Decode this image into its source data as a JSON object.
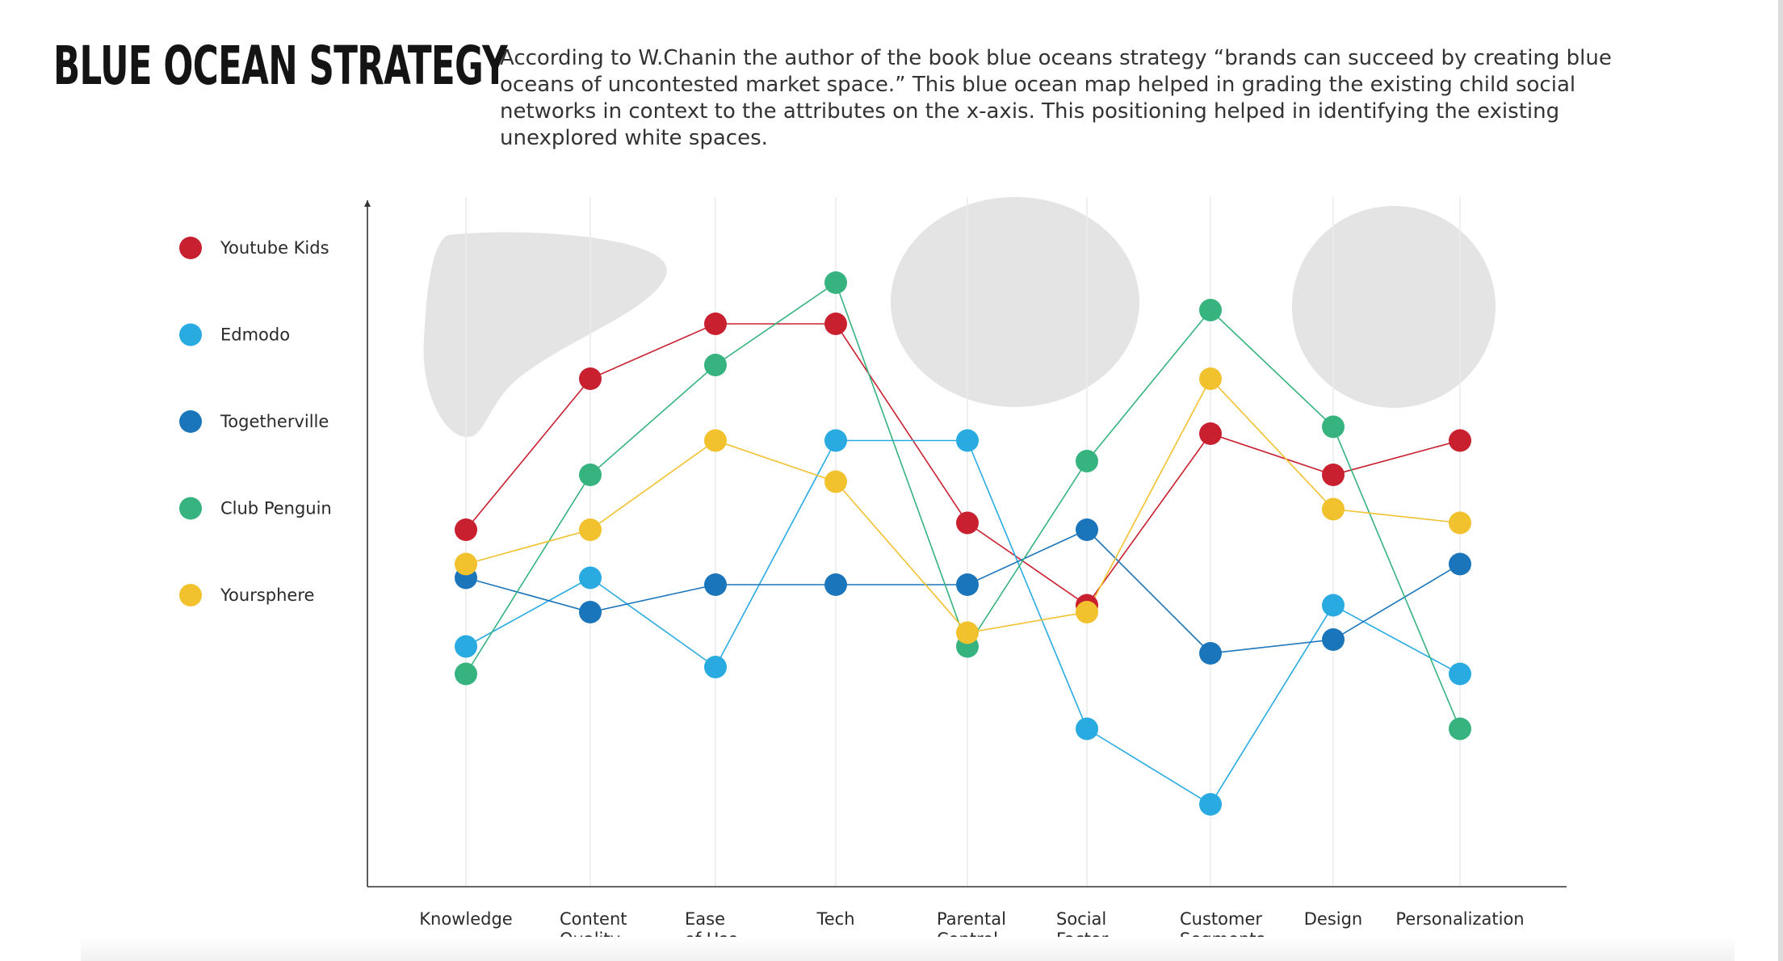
{
  "header": {
    "title": "BLUE OCEAN STRATEGY",
    "intro_lines": [
      "According to W.Chanin the author of the book blue oceans strategy “brands can succeed by creating blue",
      "oceans of uncontested market space.”  This blue ocean map helped in grading the existing child social",
      "networks in context to the attributes on the x-axis. This positioning helped in identifying the existing",
      "unexplored white spaces."
    ]
  },
  "chart_data": {
    "type": "line",
    "title": "",
    "xlabel": "",
    "ylabel": "",
    "ylim": [
      0,
      10
    ],
    "grid": "vertical",
    "legend_position": "left",
    "categories": [
      [
        "Knowledge"
      ],
      [
        "Content",
        "Quality"
      ],
      [
        "Ease",
        "of Use"
      ],
      [
        "Tech"
      ],
      [
        "Parental",
        "Control"
      ],
      [
        "Social",
        "Factor"
      ],
      [
        "Customer",
        "Segments"
      ],
      [
        "Design"
      ],
      [
        "Personalization"
      ]
    ],
    "series": [
      {
        "name": "Youtube Kids",
        "color": "#c8202f",
        "values": [
          5.2,
          7.4,
          8.2,
          8.2,
          5.3,
          4.1,
          6.6,
          6.0,
          6.5
        ]
      },
      {
        "name": "Edmodo",
        "color": "#29abe2",
        "values": [
          3.5,
          4.5,
          3.2,
          6.5,
          6.5,
          2.3,
          1.2,
          4.1,
          3.1
        ]
      },
      {
        "name": "Togetherville",
        "color": "#1b75bb",
        "values": [
          4.5,
          4.0,
          4.4,
          4.4,
          4.4,
          5.2,
          3.4,
          3.6,
          4.7
        ]
      },
      {
        "name": "Club Penguin",
        "color": "#36b37e",
        "values": [
          3.1,
          6.0,
          7.6,
          8.8,
          3.5,
          6.2,
          8.4,
          6.7,
          2.3
        ]
      },
      {
        "name": "Yoursphere",
        "color": "#f2c12e",
        "values": [
          4.7,
          5.2,
          6.5,
          5.9,
          3.7,
          4.0,
          7.4,
          5.5,
          5.3
        ]
      }
    ],
    "annotations": [
      "white-space-blob",
      "white-space-circle",
      "white-space-circle"
    ]
  }
}
